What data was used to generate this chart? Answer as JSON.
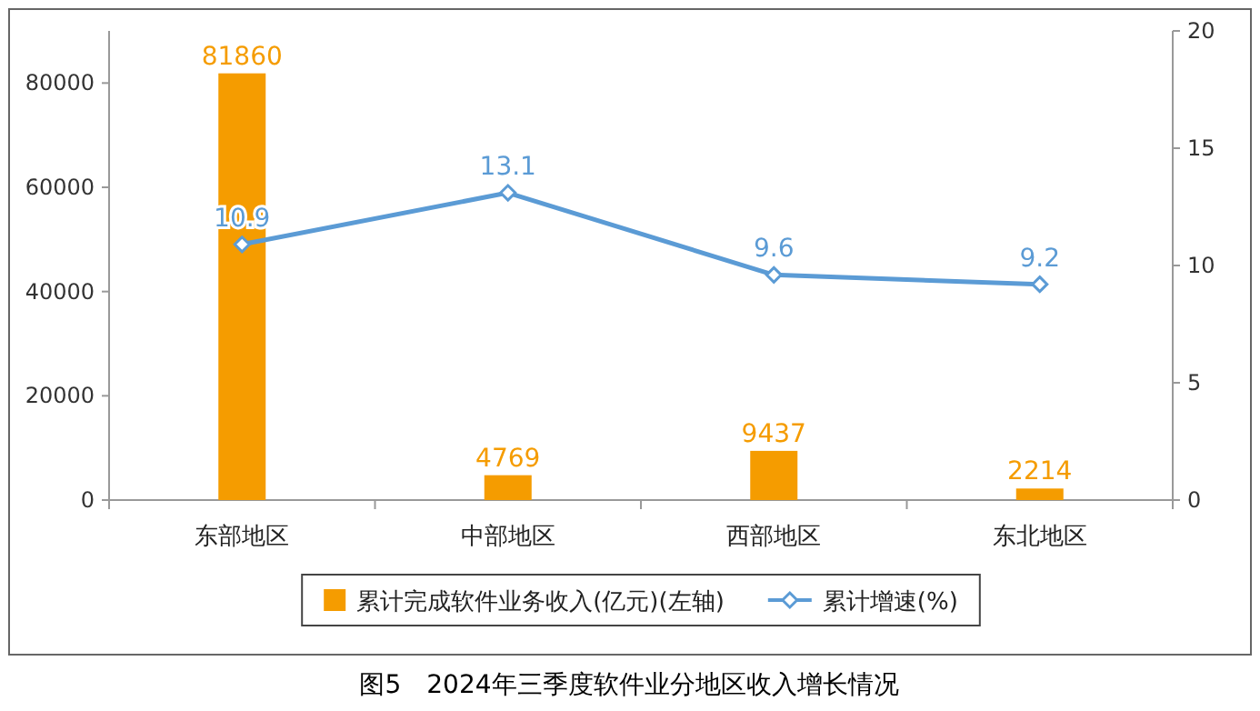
{
  "chart_data": {
    "type": "bar",
    "title": "图5　2024年三季度软件业分地区收入增长情况",
    "categories": [
      "东部地区",
      "中部地区",
      "西部地区",
      "东北地区"
    ],
    "series": [
      {
        "name": "累计完成软件业务收入(亿元)(左轴)",
        "color": "#f59c00",
        "values": [
          81860,
          4769,
          9437,
          2214
        ]
      },
      {
        "name": "累计增速(%)",
        "type": "line",
        "axis": "y2",
        "color": "#5b9bd5",
        "marker": "diamond",
        "values": [
          10.9,
          13.1,
          9.6,
          9.2
        ]
      }
    ],
    "ylim": [
      0,
      90000
    ],
    "yticks": [
      0,
      20000,
      40000,
      60000,
      80000
    ],
    "y2lim": [
      0,
      20
    ],
    "y2ticks": [
      0,
      5,
      10,
      15,
      20
    ],
    "data_labels": true,
    "legend": "bottom",
    "grid": false
  }
}
